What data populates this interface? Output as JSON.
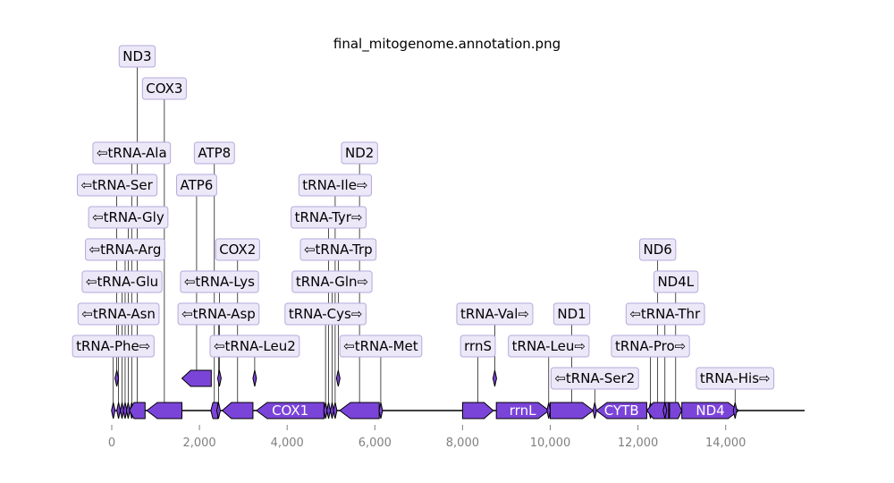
{
  "title": "final_mitogenome.annotation.png",
  "chart_data": {
    "type": "genome-feature-map",
    "title": "final_mitogenome.annotation.png",
    "xlim": [
      0,
      15800
    ],
    "xticks": [
      0,
      2000,
      4000,
      6000,
      8000,
      10000,
      12000,
      14000
    ],
    "xtick_labels": [
      "0",
      "2,000",
      "4,000",
      "6,000",
      "8,000",
      "10,000",
      "12,000",
      "14,000"
    ],
    "colors": {
      "feature_fill": "#7b44d9",
      "feature_edge": "#000000",
      "label_fill": "#ece8f8",
      "label_edge": "#b5aadb",
      "axis": "#808080"
    },
    "features": [
      {
        "name": "tRNA-Phe",
        "label": "tRNA-Phe⇨",
        "start": 0,
        "end": 70,
        "strand": 1,
        "row": 0,
        "label_level": 0
      },
      {
        "name": "tRNA-Asn",
        "label": "⇦tRNA-Asn",
        "start": 120,
        "end": 190,
        "strand": -1,
        "row": 0,
        "label_level": 1
      },
      {
        "name": "tRNA-Glu",
        "label": "⇦tRNA-Glu",
        "start": 200,
        "end": 270,
        "strand": -1,
        "row": 0,
        "label_level": 2
      },
      {
        "name": "tRNA-Arg",
        "label": "⇦tRNA-Arg",
        "start": 270,
        "end": 340,
        "strand": -1,
        "row": 0,
        "label_level": 3
      },
      {
        "name": "tRNA-Gly",
        "label": "⇦tRNA-Gly",
        "start": 340,
        "end": 410,
        "strand": -1,
        "row": 0,
        "label_level": 4
      },
      {
        "name": "tRNA-Ser",
        "label": "⇦tRNA-Ser",
        "start": 80,
        "end": 150,
        "strand": -1,
        "row": 1,
        "label_level": 5
      },
      {
        "name": "tRNA-Ala",
        "label": "⇦tRNA-Ala",
        "start": 420,
        "end": 490,
        "strand": -1,
        "row": 0,
        "label_level": 6
      },
      {
        "name": "ND3",
        "label": "ND3",
        "start": 400,
        "end": 760,
        "strand": -1,
        "row": 0,
        "label_level": 9
      },
      {
        "name": "COX3",
        "label": "COX3",
        "start": 800,
        "end": 1600,
        "strand": -1,
        "row": 0,
        "label_level": 8
      },
      {
        "name": "ATP6",
        "label": "ATP6",
        "start": 1600,
        "end": 2270,
        "strand": -1,
        "row": 1,
        "label_level": 5
      },
      {
        "name": "ATP8",
        "label": "ATP8",
        "start": 2260,
        "end": 2420,
        "strand": -1,
        "row": 0,
        "label_level": 6
      },
      {
        "name": "tRNA-Asp",
        "label": "⇦tRNA-Asp",
        "start": 2400,
        "end": 2470,
        "strand": -1,
        "row": 0,
        "label_level": 1
      },
      {
        "name": "tRNA-Lys",
        "label": "⇦tRNA-Lys",
        "start": 2420,
        "end": 2490,
        "strand": -1,
        "row": 1,
        "label_level": 2
      },
      {
        "name": "COX2",
        "label": "COX2",
        "start": 2520,
        "end": 3220,
        "strand": -1,
        "row": 0,
        "label_level": 3
      },
      {
        "name": "tRNA-Leu2",
        "label": "⇦tRNA-Leu2",
        "start": 3220,
        "end": 3300,
        "strand": -1,
        "row": 1,
        "label_level": 0
      },
      {
        "name": "COX1",
        "label": "COX1",
        "start": 3300,
        "end": 4840,
        "strand": -1,
        "row": 0,
        "label_level": -1
      },
      {
        "name": "tRNA-Cys",
        "label": "tRNA-Cys⇨",
        "start": 4840,
        "end": 4910,
        "strand": 1,
        "row": 0,
        "label_level": 1
      },
      {
        "name": "tRNA-Tyr",
        "label": "tRNA-Tyr⇨",
        "start": 4910,
        "end": 4980,
        "strand": 1,
        "row": 0,
        "label_level": 4
      },
      {
        "name": "tRNA-Gln",
        "label": "tRNA-Gln⇨",
        "start": 4990,
        "end": 5060,
        "strand": 1,
        "row": 0,
        "label_level": 2
      },
      {
        "name": "tRNA-Ile",
        "label": "tRNA-Ile⇨",
        "start": 5060,
        "end": 5130,
        "strand": 1,
        "row": 0,
        "label_level": 5
      },
      {
        "name": "tRNA-Trp",
        "label": "⇦tRNA-Trp",
        "start": 5130,
        "end": 5200,
        "strand": -1,
        "row": 1,
        "label_level": 3
      },
      {
        "name": "ND2",
        "label": "ND2",
        "start": 5200,
        "end": 6100,
        "strand": -1,
        "row": 0,
        "label_level": 6
      },
      {
        "name": "tRNA-Met",
        "label": "⇦tRNA-Met",
        "start": 6100,
        "end": 6170,
        "strand": -1,
        "row": 0,
        "label_level": 0
      },
      {
        "name": "rrnS",
        "label": "rrnS",
        "start": 8000,
        "end": 8700,
        "strand": 1,
        "row": 0,
        "label_level": 0
      },
      {
        "name": "tRNA-Val",
        "label": "tRNA-Val⇨",
        "start": 8700,
        "end": 8770,
        "strand": 1,
        "row": 1,
        "label_level": 1
      },
      {
        "name": "rrnL",
        "label": "rrnL",
        "start": 8770,
        "end": 9970,
        "strand": 1,
        "row": 0,
        "label_level": -1
      },
      {
        "name": "tRNA-Leu",
        "label": "tRNA-Leu⇨",
        "start": 9930,
        "end": 10000,
        "strand": 1,
        "row": 0,
        "label_level": 0
      },
      {
        "name": "ND1",
        "label": "ND1",
        "start": 10000,
        "end": 10980,
        "strand": 1,
        "row": 0,
        "label_level": 1
      },
      {
        "name": "tRNA-Ser2",
        "label": "⇦tRNA-Ser2",
        "start": 10980,
        "end": 11050,
        "strand": -1,
        "row": 0,
        "label_level": -2
      },
      {
        "name": "CYTB",
        "label": "CYTB",
        "start": 11050,
        "end": 12200,
        "strand": -1,
        "row": 0,
        "label_level": -1
      },
      {
        "name": "tRNA-Pro",
        "label": "tRNA-Pro⇨",
        "start": 12250,
        "end": 12320,
        "strand": 1,
        "row": 0,
        "label_level": 0
      },
      {
        "name": "ND6",
        "label": "ND6",
        "start": 12200,
        "end": 12700,
        "strand": -1,
        "row": 0,
        "label_level": 3
      },
      {
        "name": "tRNA-Thr",
        "label": "⇦tRNA-Thr",
        "start": 12580,
        "end": 12650,
        "strand": -1,
        "row": 0,
        "label_level": 1
      },
      {
        "name": "ND4L",
        "label": "ND4L",
        "start": 12720,
        "end": 13000,
        "strand": 1,
        "row": 0,
        "label_level": 2
      },
      {
        "name": "ND4",
        "label": "ND4",
        "start": 13000,
        "end": 14300,
        "strand": 1,
        "row": 0,
        "label_level": -1
      },
      {
        "name": "tRNA-His",
        "label": "tRNA-His⇨",
        "start": 14180,
        "end": 14250,
        "strand": 1,
        "row": 0,
        "label_level": -2
      }
    ]
  }
}
